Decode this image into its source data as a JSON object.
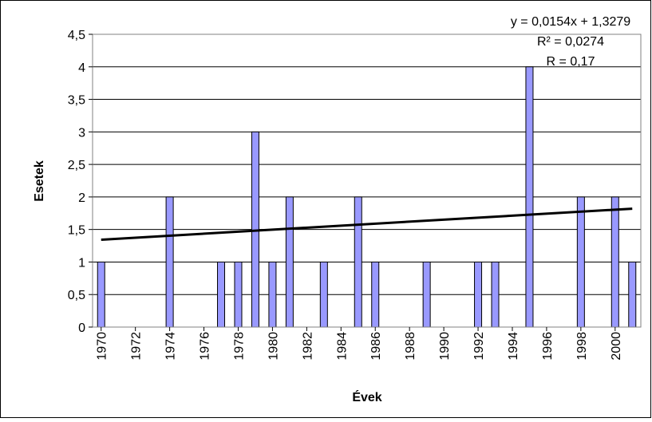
{
  "chart_data": {
    "type": "bar",
    "xlabel": "Évek",
    "ylabel": "Esetek",
    "ylim": [
      0,
      4.5
    ],
    "yticks": [
      "0",
      "0,5",
      "1",
      "1,5",
      "2",
      "2,5",
      "3",
      "3,5",
      "4",
      "4,5"
    ],
    "ytick_values": [
      0,
      0.5,
      1,
      1.5,
      2,
      2.5,
      3,
      3.5,
      4,
      4.5
    ],
    "xlim": [
      1970,
      2001
    ],
    "xticks": [
      "1970",
      "1972",
      "1974",
      "1976",
      "1978",
      "1980",
      "1982",
      "1984",
      "1986",
      "1988",
      "1990",
      "1992",
      "1994",
      "1996",
      "1998",
      "2000"
    ],
    "xtick_values": [
      1970,
      1972,
      1974,
      1976,
      1978,
      1980,
      1982,
      1984,
      1986,
      1988,
      1990,
      1992,
      1994,
      1996,
      1998,
      2000
    ],
    "x": [
      1970,
      1974,
      1977,
      1978,
      1979,
      1980,
      1981,
      1983,
      1985,
      1986,
      1989,
      1992,
      1993,
      1995,
      1998,
      2000,
      2001
    ],
    "values": [
      1,
      2,
      1,
      1,
      3,
      1,
      2,
      1,
      2,
      1,
      1,
      1,
      1,
      4,
      2,
      2,
      1
    ],
    "bar_color": "#9999ff",
    "grid": true,
    "trendline": {
      "type": "linear",
      "y_start": 1.343,
      "y_end": 1.82,
      "color": "#000000"
    },
    "annotations": {
      "equation": "y = 0,0154x + 1,3279",
      "r2": "R² = 0,0274",
      "r": "R = 0,17"
    }
  }
}
